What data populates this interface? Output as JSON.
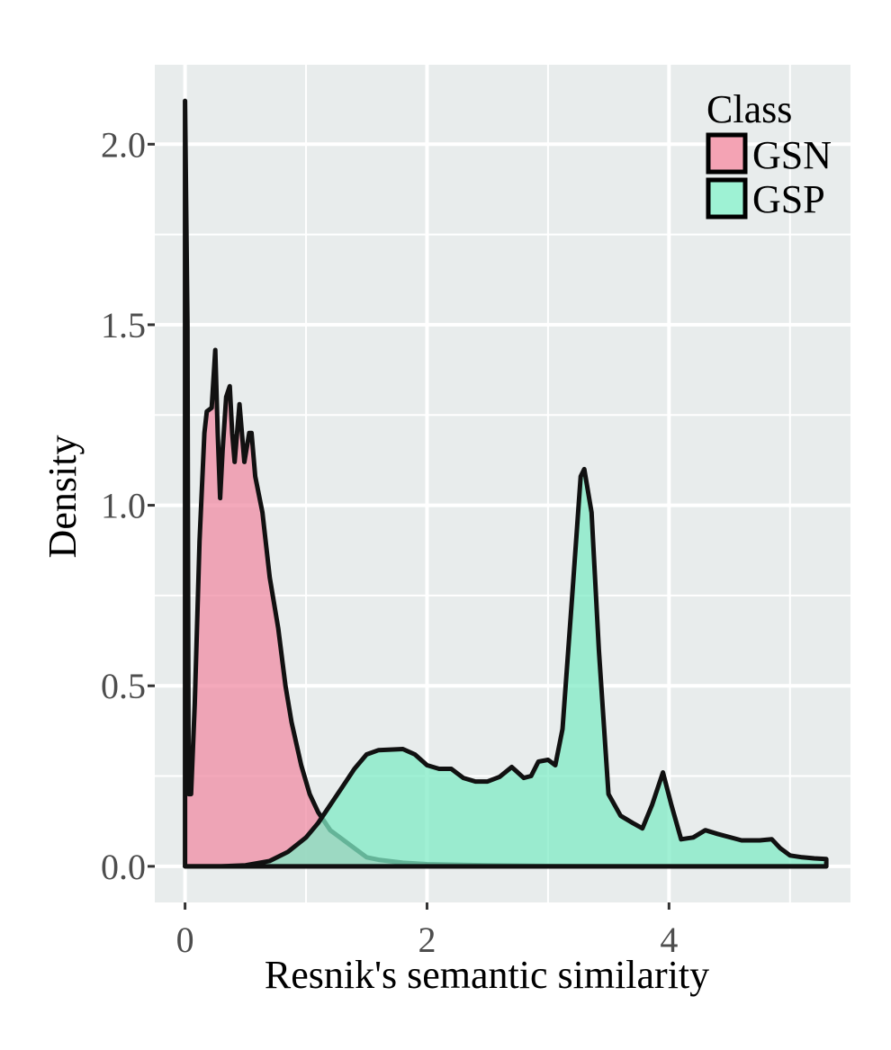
{
  "chart_data": {
    "type": "area",
    "subtype": "density",
    "xlabel": "Resnik's semantic similarity",
    "ylabel": "Density",
    "xlim": [
      -0.25,
      5.5
    ],
    "ylim": [
      -0.1,
      2.22
    ],
    "x_ticks": [
      0,
      2,
      4
    ],
    "x_tick_labels": [
      "0",
      "2",
      "4"
    ],
    "y_ticks": [
      0,
      0.5,
      1,
      1.5,
      2
    ],
    "y_tick_labels": [
      "0.0",
      "0.5",
      "1.0",
      "1.5",
      "2.0"
    ],
    "grid": true,
    "legend": {
      "title": "Class",
      "position": "top-right",
      "entries": [
        "GSN",
        "GSP"
      ]
    },
    "series": [
      {
        "name": "GSN",
        "color": "#f08ca4",
        "points": [
          [
            0.0,
            0.0
          ],
          [
            0.0,
            2.12
          ],
          [
            0.02,
            1.5
          ],
          [
            0.03,
            0.2
          ],
          [
            0.05,
            0.2
          ],
          [
            0.08,
            0.45
          ],
          [
            0.12,
            0.9
          ],
          [
            0.16,
            1.2
          ],
          [
            0.18,
            1.26
          ],
          [
            0.22,
            1.27
          ],
          [
            0.25,
            1.43
          ],
          [
            0.27,
            1.2
          ],
          [
            0.29,
            1.02
          ],
          [
            0.31,
            1.15
          ],
          [
            0.34,
            1.3
          ],
          [
            0.37,
            1.33
          ],
          [
            0.39,
            1.2
          ],
          [
            0.41,
            1.12
          ],
          [
            0.45,
            1.28
          ],
          [
            0.49,
            1.12
          ],
          [
            0.53,
            1.2
          ],
          [
            0.55,
            1.2
          ],
          [
            0.58,
            1.08
          ],
          [
            0.64,
            0.98
          ],
          [
            0.7,
            0.8
          ],
          [
            0.77,
            0.66
          ],
          [
            0.83,
            0.5
          ],
          [
            0.88,
            0.4
          ],
          [
            0.96,
            0.28
          ],
          [
            1.03,
            0.2
          ],
          [
            1.1,
            0.15
          ],
          [
            1.2,
            0.1
          ],
          [
            1.3,
            0.075
          ],
          [
            1.4,
            0.05
          ],
          [
            1.5,
            0.025
          ],
          [
            1.6,
            0.018
          ],
          [
            1.8,
            0.01
          ],
          [
            2.0,
            0.006
          ],
          [
            2.5,
            0.003
          ],
          [
            3.0,
            0.001
          ],
          [
            4.0,
            0.0
          ],
          [
            5.3,
            0.0
          ]
        ]
      },
      {
        "name": "GSP",
        "color": "#80ebc6",
        "points": [
          [
            0.0,
            0.0
          ],
          [
            0.3,
            0.0
          ],
          [
            0.5,
            0.003
          ],
          [
            0.7,
            0.015
          ],
          [
            0.85,
            0.04
          ],
          [
            1.0,
            0.08
          ],
          [
            1.1,
            0.12
          ],
          [
            1.2,
            0.17
          ],
          [
            1.3,
            0.22
          ],
          [
            1.4,
            0.27
          ],
          [
            1.5,
            0.31
          ],
          [
            1.6,
            0.322
          ],
          [
            1.8,
            0.325
          ],
          [
            1.9,
            0.31
          ],
          [
            2.0,
            0.28
          ],
          [
            2.1,
            0.27
          ],
          [
            2.2,
            0.27
          ],
          [
            2.3,
            0.245
          ],
          [
            2.4,
            0.235
          ],
          [
            2.5,
            0.235
          ],
          [
            2.6,
            0.248
          ],
          [
            2.7,
            0.275
          ],
          [
            2.8,
            0.245
          ],
          [
            2.86,
            0.25
          ],
          [
            2.92,
            0.29
          ],
          [
            3.0,
            0.295
          ],
          [
            3.06,
            0.28
          ],
          [
            3.12,
            0.38
          ],
          [
            3.2,
            0.75
          ],
          [
            3.27,
            1.08
          ],
          [
            3.3,
            1.1
          ],
          [
            3.36,
            0.98
          ],
          [
            3.42,
            0.6
          ],
          [
            3.5,
            0.2
          ],
          [
            3.6,
            0.14
          ],
          [
            3.7,
            0.12
          ],
          [
            3.78,
            0.105
          ],
          [
            3.86,
            0.17
          ],
          [
            3.95,
            0.26
          ],
          [
            4.02,
            0.17
          ],
          [
            4.1,
            0.075
          ],
          [
            4.2,
            0.08
          ],
          [
            4.3,
            0.1
          ],
          [
            4.4,
            0.09
          ],
          [
            4.6,
            0.072
          ],
          [
            4.75,
            0.072
          ],
          [
            4.85,
            0.075
          ],
          [
            4.92,
            0.05
          ],
          [
            5.0,
            0.03
          ],
          [
            5.1,
            0.025
          ],
          [
            5.2,
            0.022
          ],
          [
            5.3,
            0.02
          ],
          [
            5.3,
            0.0
          ]
        ]
      }
    ]
  }
}
